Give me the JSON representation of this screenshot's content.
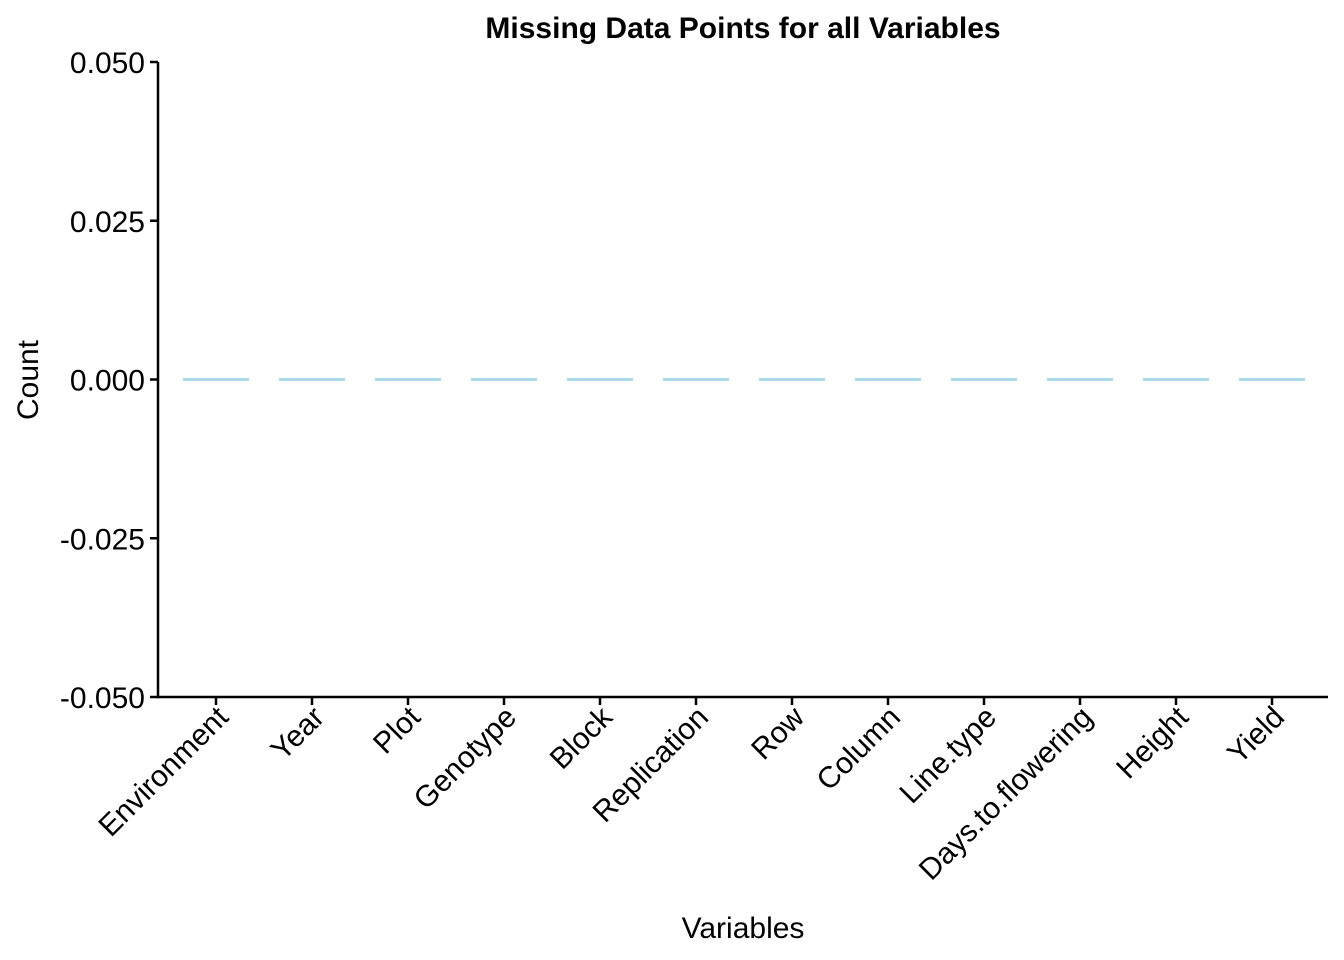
{
  "chart_data": {
    "type": "bar",
    "title": "Missing Data Points for all Variables",
    "xlabel": "Variables",
    "ylabel": "Count",
    "categories": [
      "Environment",
      "Year",
      "Plot",
      "Genotype",
      "Block",
      "Replication",
      "Row",
      "Column",
      "Line.type",
      "Days.to.flowering",
      "Height",
      "Yield"
    ],
    "values": [
      0,
      0,
      0,
      0,
      0,
      0,
      0,
      0,
      0,
      0,
      0,
      0
    ],
    "ylim": [
      -0.05,
      0.05
    ],
    "yticks": [
      0.05,
      0.025,
      0.0,
      -0.025,
      -0.05
    ],
    "ytick_labels": [
      "0.050",
      "0.025",
      "0.000",
      "-0.025",
      "-0.050"
    ],
    "bar_color": "#ADD8E6",
    "grid": false,
    "legend": "none"
  }
}
